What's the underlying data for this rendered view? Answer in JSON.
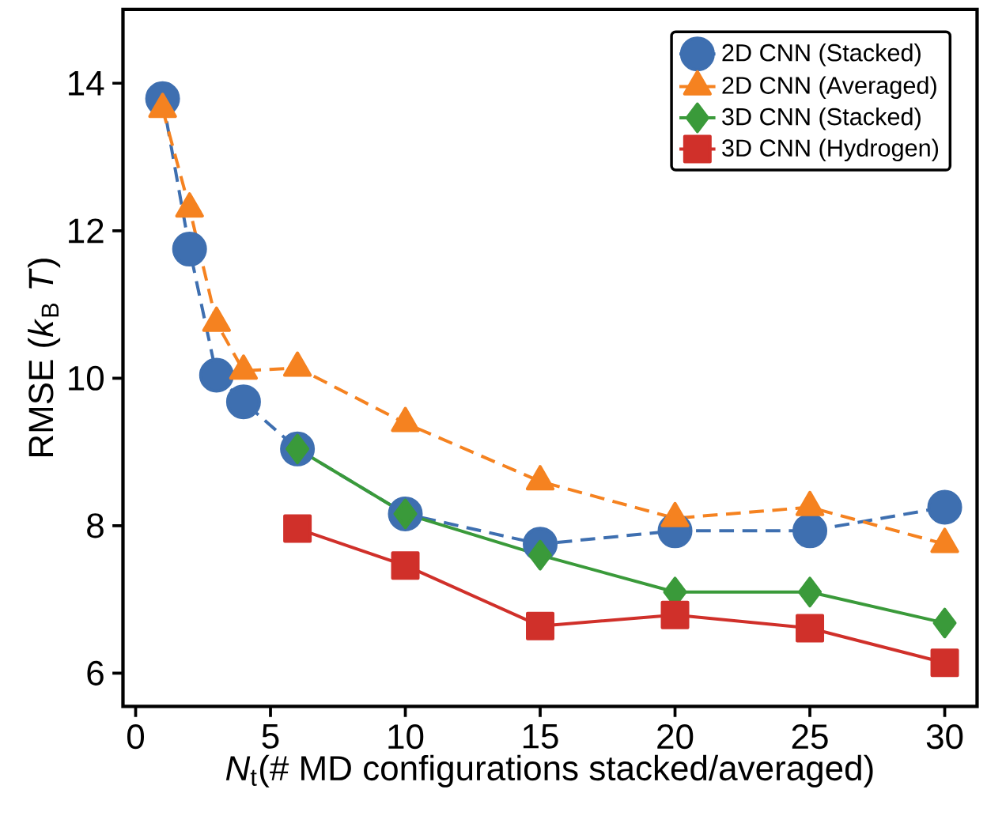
{
  "chart_data": {
    "type": "line",
    "xlabel": "*N*$_{t}$(# MD configurations stacked/averaged)",
    "ylabel": "RMSE (*k*$_{B}$ *T*)",
    "xlim": [
      -0.47,
      31.2
    ],
    "ylim": [
      5.55,
      15.0
    ],
    "xticks": [
      0,
      5,
      10,
      15,
      20,
      25,
      30
    ],
    "yticks": [
      6,
      8,
      10,
      12,
      14
    ],
    "legend": "top right",
    "series": [
      {
        "name": "2D CNN (Stacked)",
        "color": "#3e6fb0",
        "marker": "circle",
        "line_style": "dashed",
        "x": [
          1,
          2,
          3,
          4,
          6,
          10,
          15,
          20,
          25,
          30
        ],
        "values": [
          13.79,
          11.75,
          10.04,
          9.68,
          9.04,
          8.16,
          7.75,
          7.93,
          7.93,
          8.25
        ]
      },
      {
        "name": "2D CNN (Averaged)",
        "color": "#f58220",
        "marker": "triangle",
        "line_style": "dashed",
        "x": [
          1,
          2,
          3,
          4,
          6,
          10,
          15,
          20,
          25,
          30
        ],
        "values": [
          13.65,
          12.3,
          10.75,
          10.1,
          10.14,
          9.39,
          8.6,
          8.1,
          8.25,
          7.75
        ]
      },
      {
        "name": "3D CNN (Stacked)",
        "color": "#3a9a3a",
        "marker": "diamond",
        "line_style": "solid",
        "x": [
          6,
          10,
          15,
          20,
          25,
          30
        ],
        "values": [
          9.04,
          8.16,
          7.6,
          7.1,
          7.1,
          6.68
        ]
      },
      {
        "name": "3D CNN (Hydrogen)",
        "color": "#d0302a",
        "marker": "square",
        "line_style": "solid",
        "x": [
          6,
          10,
          15,
          20,
          25,
          30
        ],
        "values": [
          7.96,
          7.46,
          6.64,
          6.79,
          6.61,
          6.14
        ]
      }
    ]
  }
}
